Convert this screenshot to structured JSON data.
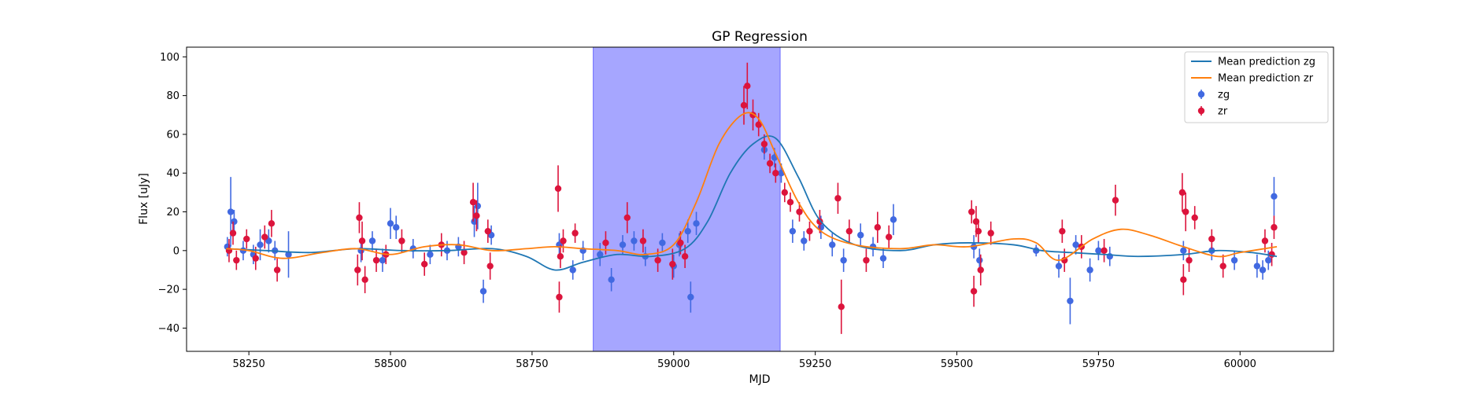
{
  "chart_data": {
    "type": "scatter",
    "title": "GP Regression",
    "xlabel": "MJD",
    "ylabel": "Flux [uJy]",
    "xlim": [
      58140,
      60165
    ],
    "ylim": [
      -52,
      105
    ],
    "xticks": [
      58250,
      58500,
      58750,
      59000,
      59250,
      59500,
      59750,
      60000
    ],
    "yticks": [
      -40,
      -20,
      0,
      20,
      40,
      60,
      80,
      100
    ],
    "grid": false,
    "legend_position": "top-right",
    "shaded_region": {
      "x0": 58858,
      "x1": 59188,
      "color": "#a6a6ff"
    },
    "series": [
      {
        "name": "Mean prediction zg",
        "kind": "line",
        "color": "#1f77b4",
        "x": [
          58210,
          58280,
          58360,
          58440,
          58520,
          58600,
          58680,
          58740,
          58790,
          58840,
          58900,
          58960,
          59020,
          59060,
          59100,
          59140,
          59180,
          59220,
          59260,
          59320,
          59400,
          59460,
          59520,
          59600,
          59650,
          59700,
          59760,
          59820,
          59900,
          59960,
          60020,
          60065
        ],
        "y": [
          1,
          0,
          -1,
          1,
          0,
          0,
          1,
          -3,
          -10,
          -6,
          -2,
          -3,
          1,
          15,
          40,
          55,
          58,
          38,
          15,
          3,
          0,
          3,
          4,
          3,
          0,
          -1,
          -2,
          -3,
          -2,
          0,
          -1,
          -3
        ]
      },
      {
        "name": "Mean prediction zr",
        "kind": "line",
        "color": "#ff7f0e",
        "x": [
          58210,
          58250,
          58310,
          58380,
          58440,
          58500,
          58560,
          58620,
          58680,
          58740,
          58790,
          58840,
          58900,
          58950,
          59000,
          59040,
          59080,
          59120,
          59150,
          59180,
          59220,
          59260,
          59320,
          59400,
          59460,
          59520,
          59600,
          59640,
          59680,
          59740,
          59790,
          59840,
          59900,
          59960,
          60000,
          60065
        ],
        "y": [
          1,
          0,
          -4,
          -1,
          1,
          -2,
          2,
          3,
          0,
          1,
          2,
          1,
          0,
          -2,
          3,
          25,
          55,
          70,
          68,
          50,
          25,
          10,
          3,
          1,
          3,
          2,
          6,
          4,
          -5,
          6,
          11,
          8,
          2,
          -3,
          -1,
          2
        ]
      },
      {
        "name": "zg",
        "kind": "errorbar",
        "color": "#4169e1",
        "x": [
          58212,
          58218,
          58224,
          58240,
          58258,
          58270,
          58285,
          58296,
          58320,
          58448,
          58468,
          58486,
          58500,
          58510,
          58540,
          58570,
          58600,
          58620,
          58648,
          58654,
          58664,
          58678,
          58798,
          58822,
          58840,
          58870,
          58890,
          58910,
          58930,
          58950,
          58980,
          59000,
          59010,
          59025,
          59030,
          59040,
          59160,
          59178,
          59190,
          59210,
          59230,
          59260,
          59280,
          59300,
          59330,
          59352,
          59370,
          59388,
          59530,
          59540,
          59640,
          59680,
          59700,
          59710,
          59735,
          59750,
          59770,
          59900,
          59950,
          59990,
          60030,
          60040,
          60050,
          60060
        ],
        "y": [
          2,
          20,
          15,
          0,
          -2,
          3,
          5,
          0,
          -2,
          0,
          5,
          -5,
          14,
          12,
          1,
          -2,
          0,
          2,
          15,
          23,
          -21,
          8,
          3,
          -10,
          0,
          -2,
          -15,
          3,
          5,
          -3,
          4,
          -8,
          3,
          10,
          -24,
          14,
          52,
          48,
          40,
          10,
          5,
          12,
          3,
          -5,
          8,
          2,
          -4,
          16,
          2,
          -5,
          0,
          -8,
          -26,
          3,
          -10,
          0,
          -3,
          0,
          0,
          -5,
          -8,
          -10,
          -5,
          28
        ],
        "err": [
          5,
          18,
          6,
          5,
          5,
          8,
          6,
          5,
          12,
          6,
          5,
          6,
          8,
          6,
          5,
          5,
          5,
          5,
          8,
          12,
          6,
          5,
          6,
          5,
          5,
          6,
          6,
          5,
          5,
          5,
          5,
          6,
          6,
          6,
          8,
          6,
          5,
          5,
          5,
          6,
          5,
          6,
          6,
          6,
          6,
          5,
          5,
          8,
          6,
          6,
          3,
          6,
          12,
          5,
          6,
          5,
          5,
          5,
          5,
          5,
          6,
          5,
          5,
          10
        ]
      },
      {
        "name": "zr",
        "kind": "errorbar",
        "color": "#dc143c",
        "x": [
          58215,
          58222,
          58228,
          58246,
          58262,
          58278,
          58290,
          58300,
          58442,
          58445,
          58450,
          58455,
          58475,
          58492,
          58520,
          58560,
          58590,
          58630,
          58646,
          58652,
          58672,
          58676,
          58796,
          58798,
          58800,
          58805,
          58826,
          58880,
          58918,
          58946,
          58972,
          58998,
          59012,
          59020,
          59124,
          59130,
          59140,
          59150,
          59160,
          59170,
          59180,
          59196,
          59206,
          59222,
          59240,
          59258,
          59290,
          59296,
          59310,
          59340,
          59360,
          59380,
          59526,
          59530,
          59534,
          59538,
          59542,
          59560,
          59686,
          59690,
          59720,
          59760,
          59780,
          59898,
          59900,
          59904,
          59910,
          59920,
          59950,
          59970,
          60044,
          60056,
          60060
        ],
        "y": [
          0,
          9,
          -5,
          6,
          -4,
          7,
          14,
          -10,
          -10,
          17,
          5,
          -15,
          -5,
          -2,
          5,
          -7,
          3,
          -1,
          25,
          18,
          10,
          -8,
          32,
          -24,
          -3,
          5,
          9,
          4,
          17,
          5,
          -5,
          -7,
          4,
          -3,
          75,
          85,
          70,
          65,
          55,
          45,
          40,
          30,
          25,
          20,
          10,
          15,
          27,
          -29,
          10,
          -5,
          12,
          7,
          20,
          -21,
          15,
          10,
          -10,
          9,
          10,
          -5,
          2,
          0,
          26,
          30,
          -15,
          20,
          -5,
          17,
          6,
          -8,
          5,
          -2,
          12
        ],
        "err": [
          6,
          6,
          5,
          5,
          6,
          6,
          7,
          6,
          8,
          8,
          10,
          7,
          6,
          5,
          6,
          6,
          6,
          6,
          10,
          8,
          6,
          7,
          12,
          8,
          6,
          6,
          5,
          6,
          8,
          6,
          6,
          8,
          6,
          6,
          10,
          12,
          8,
          6,
          5,
          5,
          5,
          5,
          5,
          5,
          5,
          6,
          8,
          14,
          6,
          6,
          8,
          6,
          6,
          8,
          8,
          6,
          8,
          6,
          6,
          6,
          6,
          6,
          8,
          10,
          8,
          10,
          6,
          6,
          5,
          6,
          6,
          6,
          6
        ]
      }
    ]
  }
}
